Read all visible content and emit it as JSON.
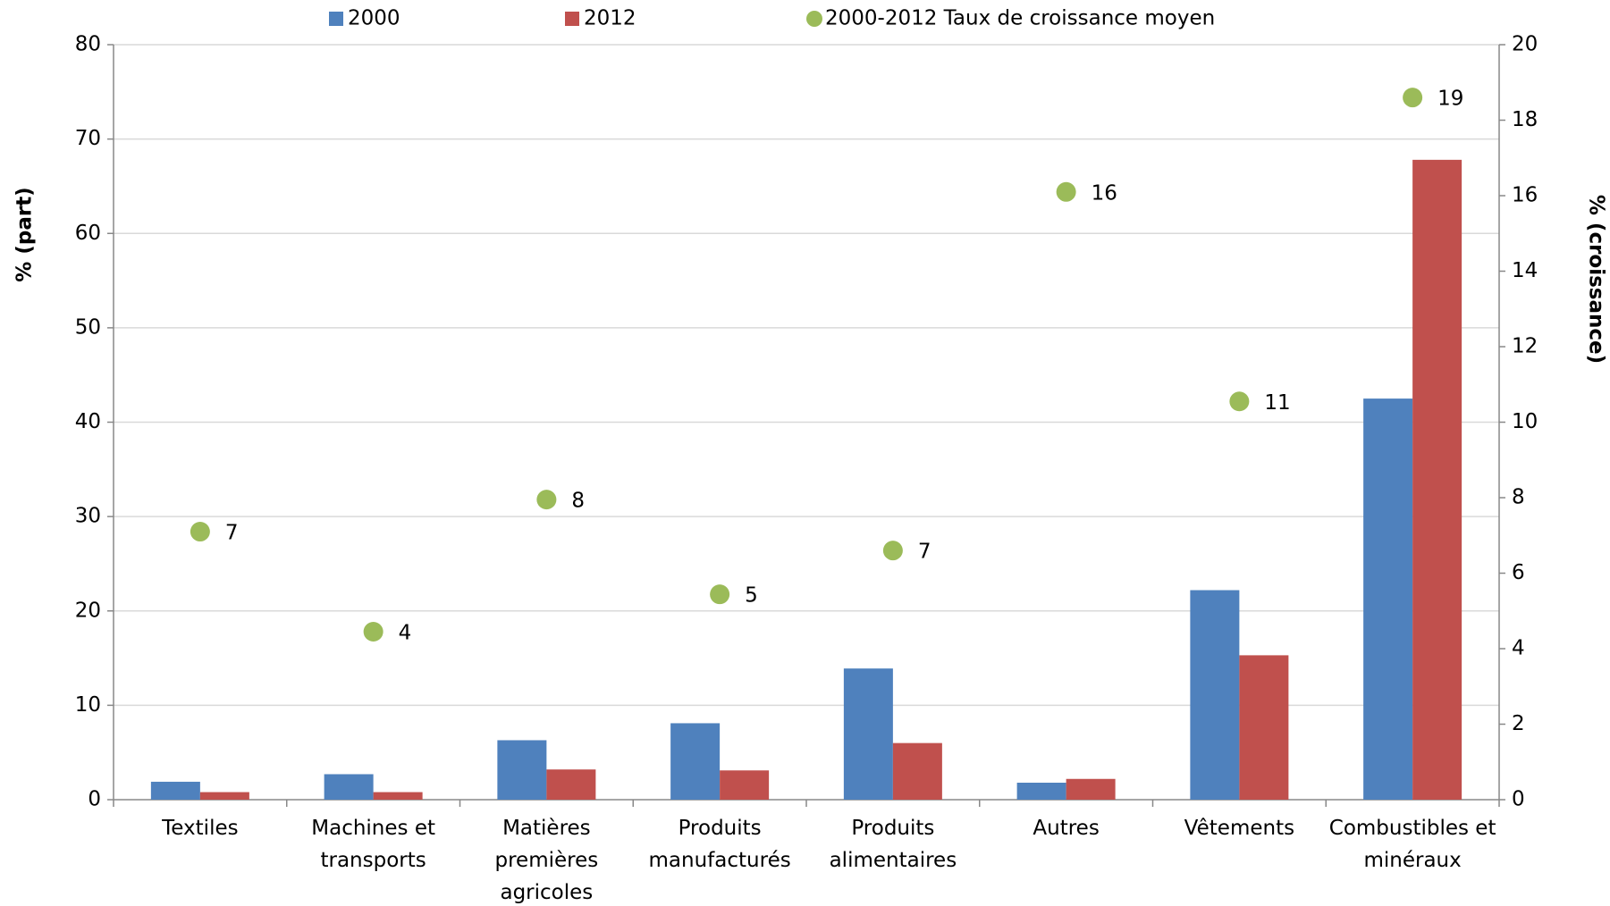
{
  "chart_data": {
    "type": "bar",
    "categories": [
      "Textiles",
      "Machines et\ntransports",
      "Matières\npremières\nagricoles",
      "Produits\nmanufacturés",
      "Produits\nalimentaires",
      "Autres",
      "Vêtements",
      "Combustibles et\nminéraux"
    ],
    "series": [
      {
        "name": "2000",
        "color": "#4f81bd",
        "values": [
          1.9,
          2.7,
          6.3,
          8.1,
          13.9,
          1.8,
          22.2,
          42.5
        ]
      },
      {
        "name": "2012",
        "color": "#c0504d",
        "values": [
          0.8,
          0.8,
          3.2,
          3.1,
          6.0,
          2.2,
          15.3,
          67.8
        ]
      },
      {
        "name": "2000-2012 Taux de croissance moyen",
        "color": "#9bbb59",
        "type": "scatter",
        "axis": "y2",
        "values": [
          7.1,
          4.45,
          7.95,
          5.44,
          6.6,
          16.1,
          10.55,
          18.6
        ],
        "value_labels": [
          "7",
          "4",
          "8",
          "5",
          "7",
          "16",
          "11",
          "19"
        ]
      }
    ],
    "ylabel": "% (part)",
    "y2label": "% (croissance)",
    "ylim": [
      0,
      80
    ],
    "yticks": [
      0,
      10,
      20,
      30,
      40,
      50,
      60,
      70,
      80
    ],
    "y2lim": [
      0,
      20
    ],
    "y2ticks": [
      0,
      2,
      4,
      6,
      8,
      10,
      12,
      14,
      16,
      18,
      20
    ],
    "grid": true,
    "legend": "top"
  }
}
